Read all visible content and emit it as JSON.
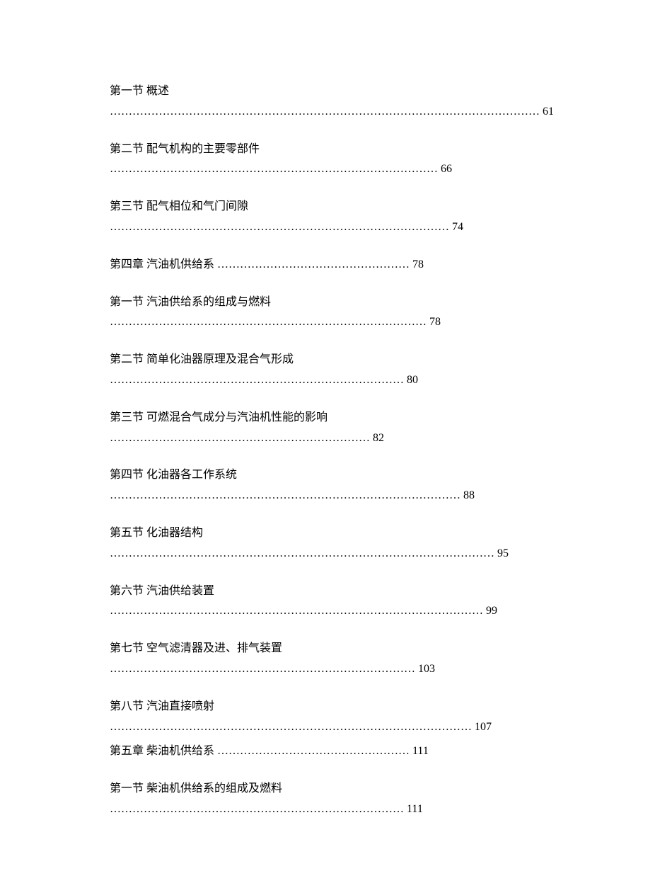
{
  "entries": [
    {
      "title": "第一节  概述 ",
      "dots_page": "……………………………………………………………………………………………………  61",
      "tight": false
    },
    {
      "title": "第二节  配气机构的主要零部件 ",
      "dots_page": "……………………………………………………………………………  66",
      "tight": false
    },
    {
      "title": "第三节  配气相位和气门间隙 ",
      "dots_page": "………………………………………………………………………………  74",
      "tight": false
    },
    {
      "title": "第四章  汽油机供给系 ",
      "dots_page": "……………………………………………  78",
      "tight": false
    },
    {
      "title": "第一节  汽油供给系的组成与燃料 ",
      "dots_page": "…………………………………………………………………………  78",
      "tight": false
    },
    {
      "title": "第二节  简单化油器原理及混合气形成 ",
      "dots_page": "……………………………………………………………………  80",
      "tight": false
    },
    {
      "title": "第三节  可燃混合气成分与汽油机性能的影响 ",
      "dots_page": "……………………………………………………………  82",
      "tight": false
    },
    {
      "title": "第四节  化油器各工作系统 ",
      "dots_page": "…………………………………………………………………………………  88",
      "tight": false
    },
    {
      "title": "第五节  化油器结构 ",
      "dots_page": "…………………………………………………………………………………………  95",
      "tight": false
    },
    {
      "title": "第六节  汽油供给装置 ",
      "dots_page": "………………………………………………………………………………………  99",
      "tight": false
    },
    {
      "title": "第七节  空气滤清器及进、排气装置 ",
      "dots_page": "………………………………………………………………………  103",
      "tight": false
    },
    {
      "title": "第八节  汽油直接喷射 ",
      "dots_page": "……………………………………………………………………………………  107",
      "tight": true
    },
    {
      "title": "第五章  柴油机供给系 ",
      "dots_page": "……………………………………………  111",
      "tight": false
    },
    {
      "title": "第一节  柴油机供给系的组成及燃料 ",
      "dots_page": "……………………………………………………………………  111",
      "tight": false
    }
  ],
  "colors": {
    "background": "#ffffff",
    "text": "#000000"
  },
  "typography": {
    "font_family": "SimSun",
    "font_size_pt": 12,
    "line_height": 1.8
  }
}
